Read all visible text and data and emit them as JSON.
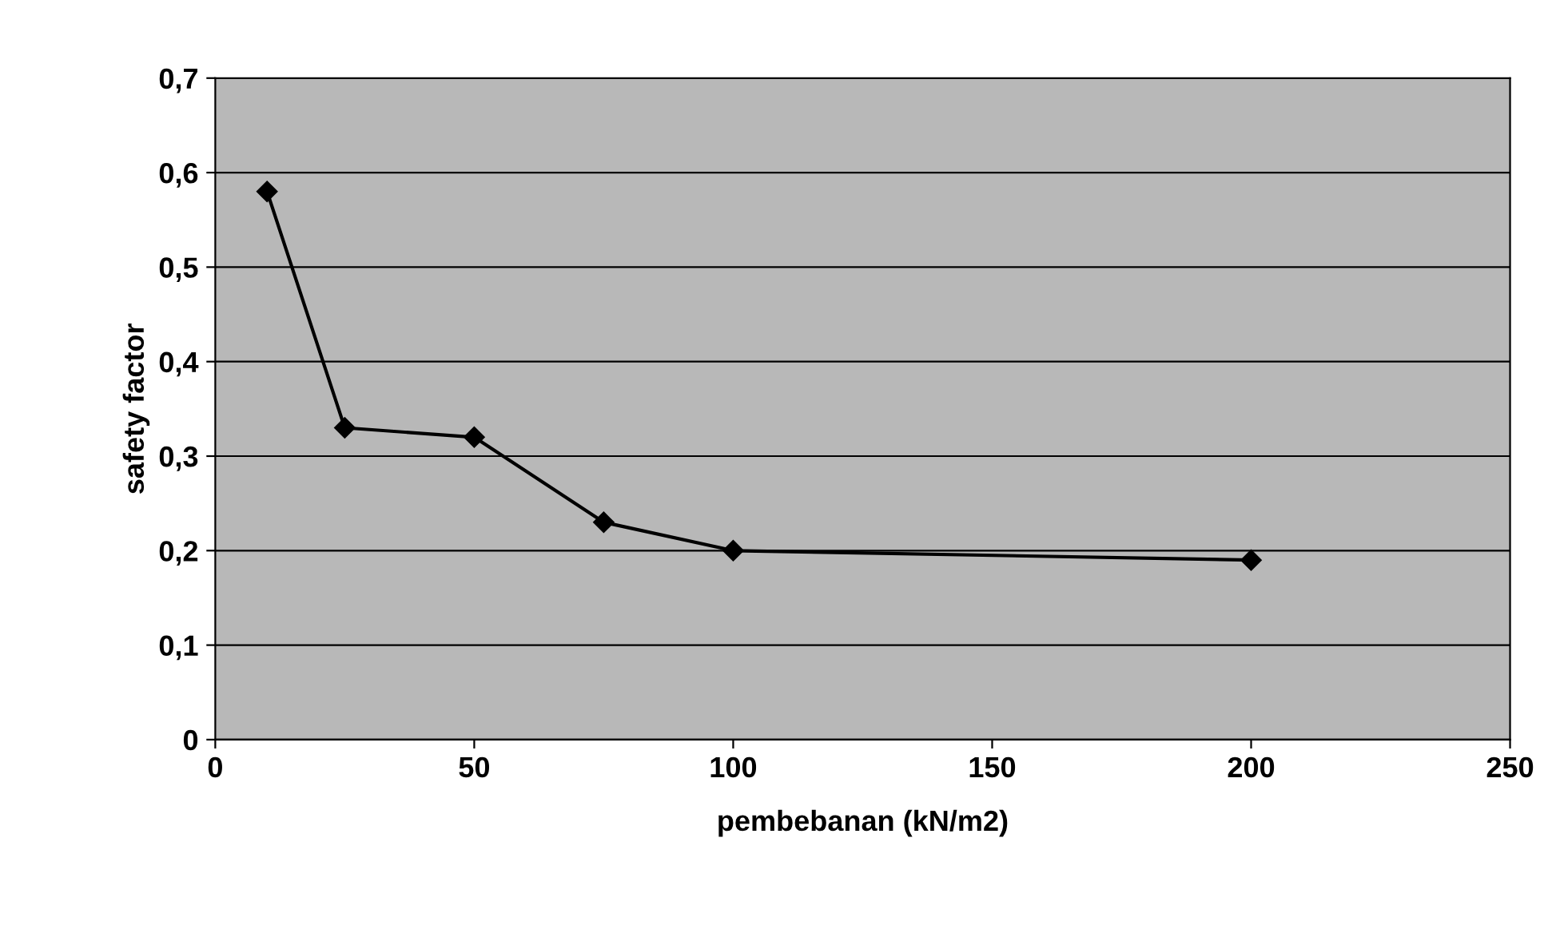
{
  "chart_data": {
    "type": "line",
    "xlabel": "pembebanan (kN/m2)",
    "ylabel": "safety factor",
    "x": [
      10,
      25,
      50,
      75,
      100,
      200
    ],
    "series": [
      {
        "color": "#000000",
        "values": [
          0.58,
          0.33,
          0.32,
          0.23,
          0.2,
          0.19
        ]
      }
    ],
    "xlim": [
      0,
      250
    ],
    "xticks": [
      0,
      50,
      100,
      150,
      200,
      250
    ],
    "ylim": [
      0,
      0.7
    ],
    "yticks": [
      0,
      {
        "value": 0.1,
        "label": "0,1"
      },
      {
        "value": 0.2,
        "label": "0,2"
      },
      {
        "value": 0.3,
        "label": "0,3"
      },
      {
        "value": 0.4,
        "label": "0,4"
      },
      {
        "value": 0.5,
        "label": "0,5"
      },
      {
        "value": 0.6,
        "label": "0,6"
      },
      {
        "value": 0.7,
        "label": "0,7"
      }
    ],
    "grid": "y",
    "marker": "diamond",
    "line_style": "solid",
    "legend": false
  }
}
